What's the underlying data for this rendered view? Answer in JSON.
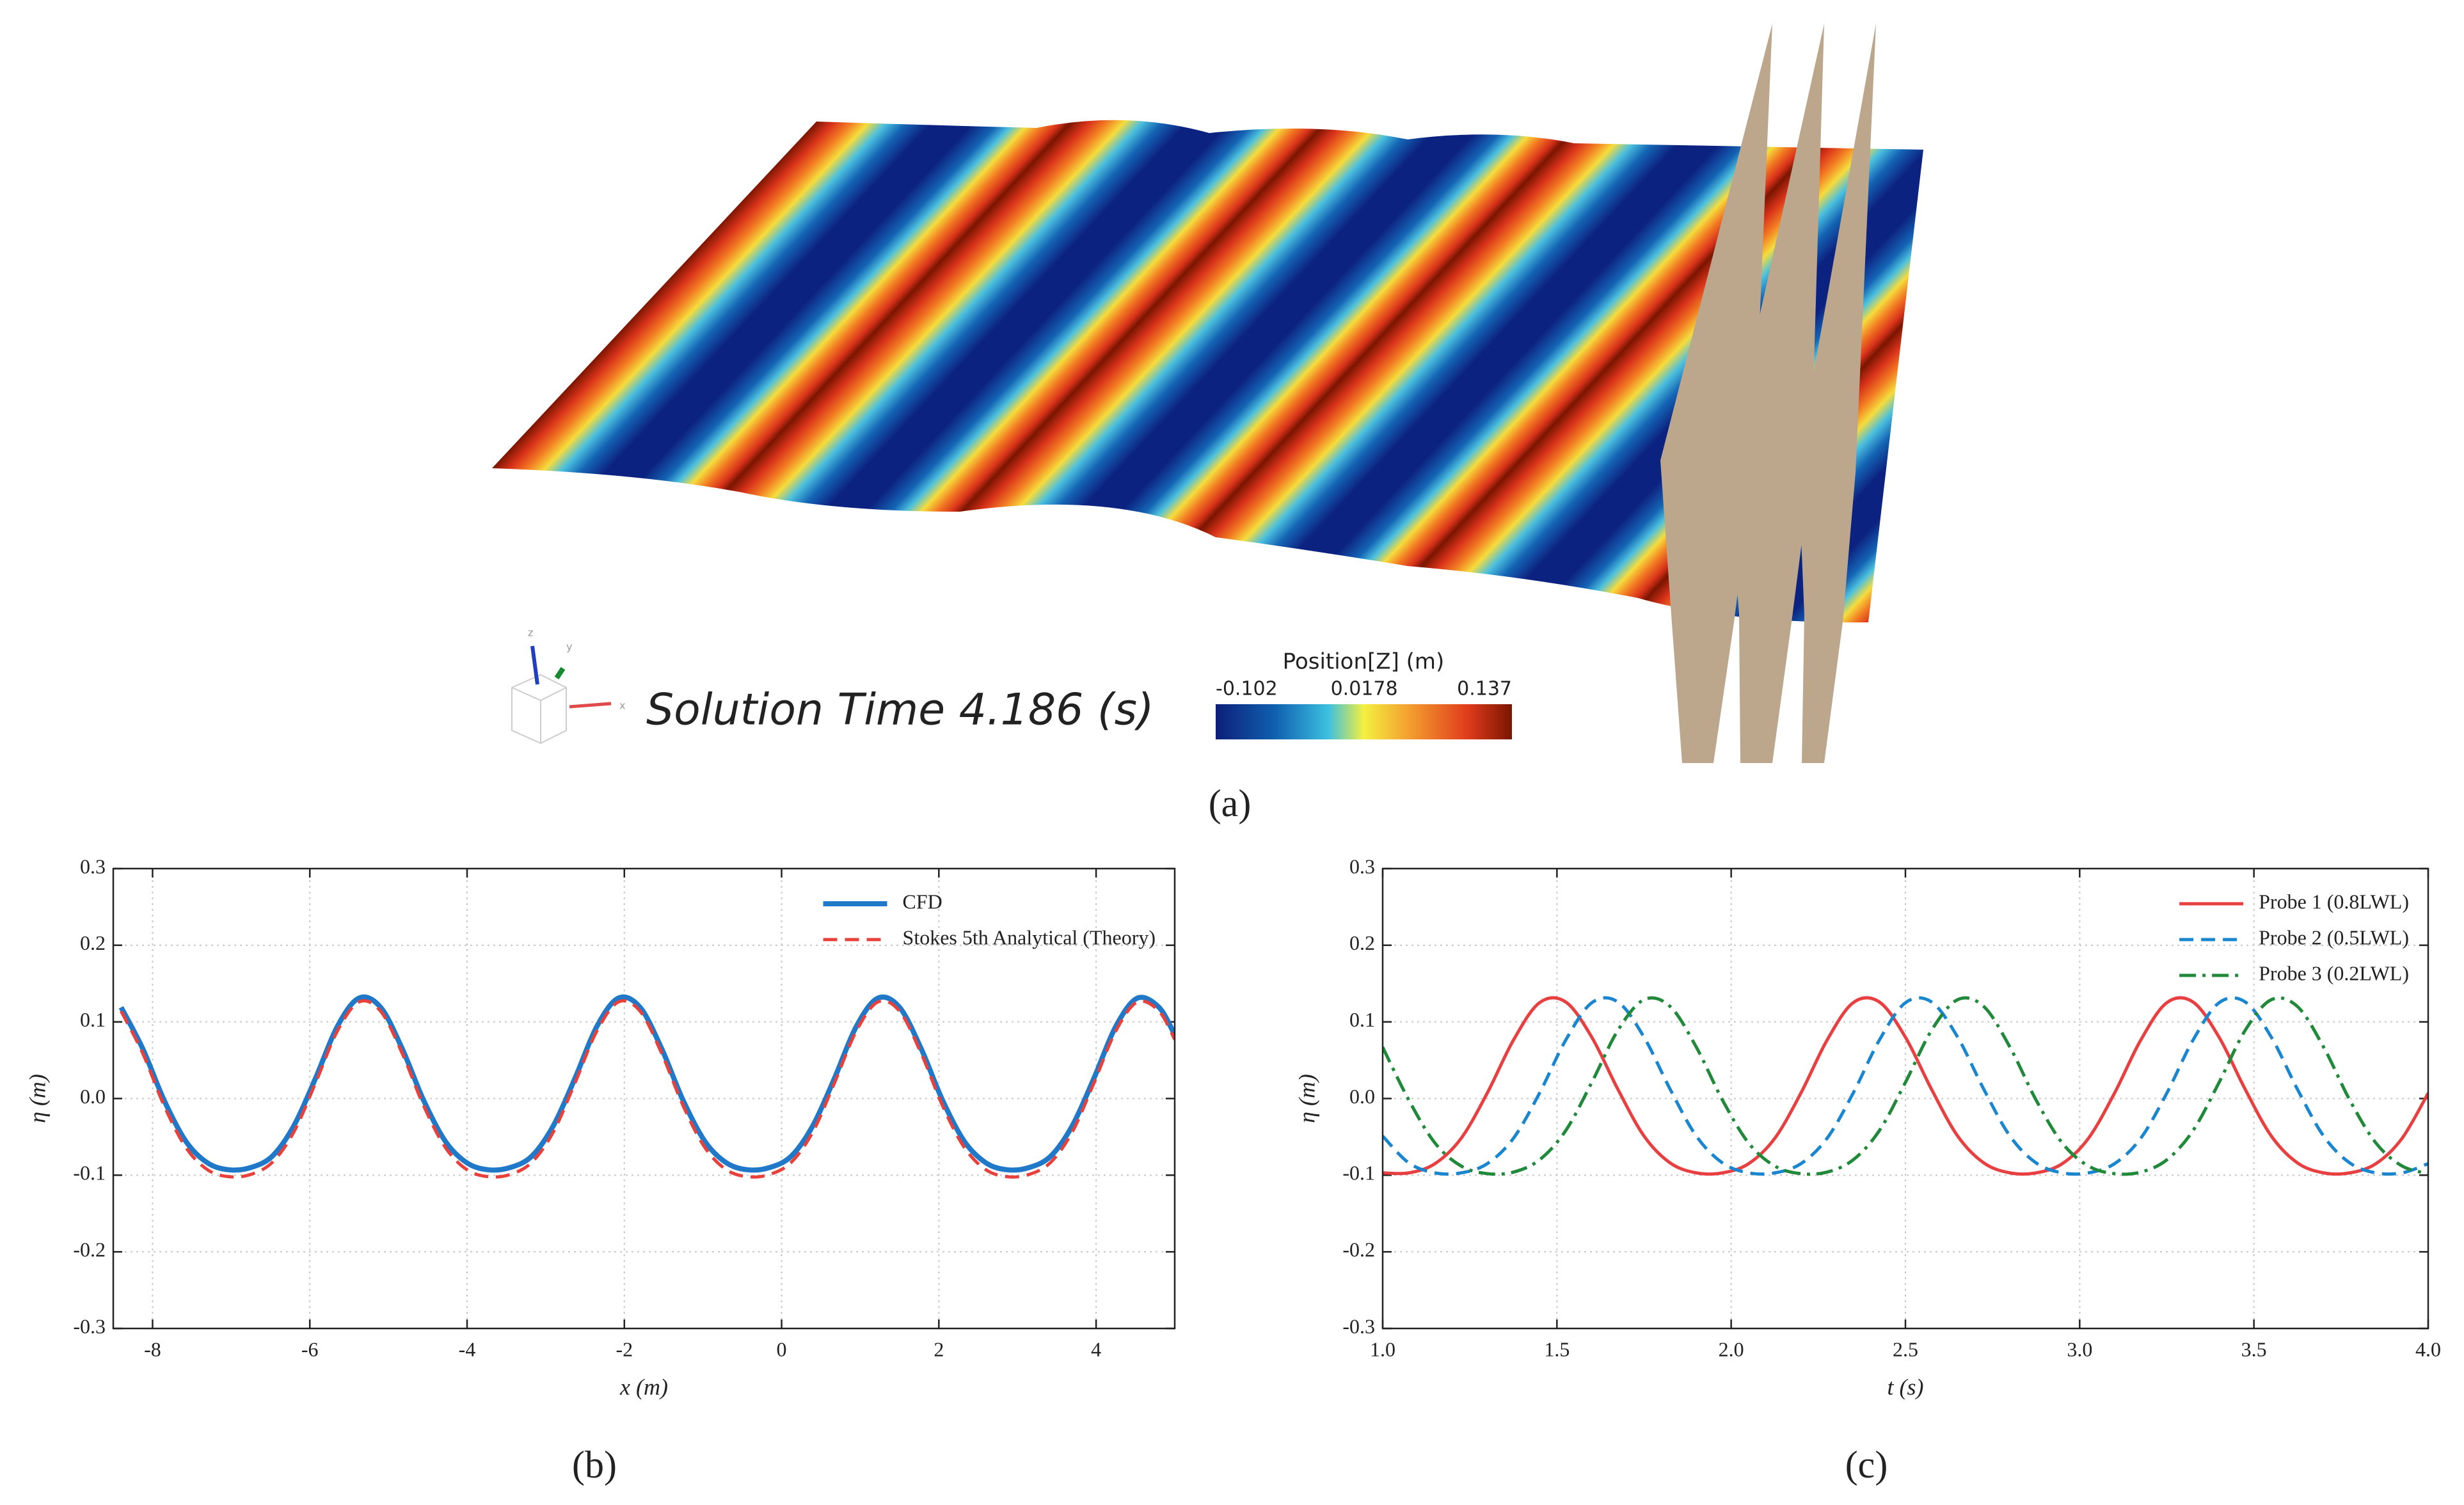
{
  "panel_a": {
    "triad_labels": [
      "z",
      "y",
      "x"
    ],
    "solution_time": "Solution Time 4.186 (s)",
    "colorbar": {
      "title": "Position[Z] (m)",
      "ticks": [
        -0.102,
        0.0178,
        0.137
      ]
    }
  },
  "panel_labels": [
    "(a)",
    "(b)",
    "(c)"
  ],
  "chart_data": [
    {
      "type": "line",
      "xlabel": "x (m)",
      "ylabel": "η (m)",
      "grid": true,
      "legend": "upper right",
      "xlim": [
        -8.5,
        5
      ],
      "ylim": [
        -0.3,
        0.3
      ],
      "xticks": [
        -8,
        -6,
        -4,
        -2,
        0,
        2,
        4
      ],
      "yticks": [
        -0.3,
        -0.2,
        -0.1,
        {
          "value": 0,
          "label": "0.0"
        },
        0.1,
        0.2,
        0.3
      ],
      "x": [
        -8.4,
        -8.125,
        -7.85,
        -7.575,
        -7.3,
        -7.025,
        -6.75,
        -6.475,
        -6.2,
        -5.925,
        -5.65,
        -5.375,
        -5.1,
        -4.825,
        -4.55,
        -4.275,
        -4.0,
        -3.725,
        -3.45,
        -3.175,
        -2.9,
        -2.625,
        -2.35,
        -2.075,
        -1.8,
        -1.525,
        -1.25,
        -0.975,
        -0.7,
        -0.425,
        -0.15,
        0.125,
        0.4,
        0.675,
        0.95,
        1.225,
        1.5,
        1.775,
        2.05,
        2.325,
        2.6,
        2.875,
        3.15,
        3.425,
        3.7,
        3.975,
        4.25,
        4.525,
        4.8,
        5.0
      ],
      "series": [
        {
          "name": "CFD",
          "color": "#1f78c8",
          "style": "solid",
          "width": 8,
          "values": [
            0.119,
            0.065,
            -0.003,
            -0.056,
            -0.084,
            -0.093,
            -0.09,
            -0.075,
            -0.035,
            0.027,
            0.094,
            0.131,
            0.119,
            0.065,
            -0.003,
            -0.056,
            -0.084,
            -0.093,
            -0.09,
            -0.075,
            -0.035,
            0.027,
            0.094,
            0.131,
            0.119,
            0.065,
            -0.003,
            -0.056,
            -0.084,
            -0.093,
            -0.09,
            -0.075,
            -0.035,
            0.027,
            0.094,
            0.131,
            0.119,
            0.065,
            -0.003,
            -0.056,
            -0.084,
            -0.093,
            -0.09,
            -0.075,
            -0.035,
            0.027,
            0.094,
            0.131,
            0.119,
            0.083
          ]
        },
        {
          "name": "Stokes 5th Analytical (Theory)",
          "color": "#e8413c",
          "style": "dashed",
          "width": 5,
          "values": [
            0.114,
            0.059,
            -0.01,
            -0.064,
            -0.093,
            -0.102,
            -0.099,
            -0.083,
            -0.043,
            0.021,
            0.088,
            0.126,
            0.114,
            0.059,
            -0.01,
            -0.064,
            -0.093,
            -0.102,
            -0.099,
            -0.083,
            -0.043,
            0.021,
            0.088,
            0.126,
            0.114,
            0.059,
            -0.01,
            -0.064,
            -0.093,
            -0.102,
            -0.099,
            -0.083,
            -0.043,
            0.021,
            0.088,
            0.126,
            0.114,
            0.059,
            -0.01,
            -0.064,
            -0.093,
            -0.102,
            -0.099,
            -0.083,
            -0.043,
            0.021,
            0.088,
            0.126,
            0.114,
            0.077
          ]
        }
      ]
    },
    {
      "type": "line",
      "xlabel": "t (s)",
      "ylabel": "η (m)",
      "grid": true,
      "legend": "upper right",
      "xlim": [
        1.0,
        4.0
      ],
      "ylim": [
        -0.3,
        0.3
      ],
      "xticks": [
        {
          "value": 1,
          "label": "1.0"
        },
        1.5,
        {
          "value": 2,
          "label": "2.0"
        },
        2.5,
        {
          "value": 3,
          "label": "3.0"
        },
        3.5,
        {
          "value": 4,
          "label": "4.0"
        }
      ],
      "yticks": [
        -0.3,
        -0.2,
        -0.1,
        {
          "value": 0,
          "label": "0.0"
        },
        0.1,
        0.2,
        0.3
      ],
      "x": [
        1,
        1.075,
        1.15,
        1.225,
        1.3,
        1.375,
        1.45,
        1.525,
        1.6,
        1.675,
        1.75,
        1.825,
        1.9,
        1.975,
        2.05,
        2.125,
        2.2,
        2.275,
        2.35,
        2.425,
        2.5,
        2.575,
        2.65,
        2.725,
        2.8,
        2.875,
        2.95,
        3.025,
        3.1,
        3.175,
        3.25,
        3.325,
        3.4,
        3.475,
        3.55,
        3.625,
        3.7,
        3.775,
        3.85,
        3.925,
        4
      ],
      "series": [
        {
          "name": "Probe 1 (0.8LWL)",
          "color": "#e84040",
          "style": "solid",
          "width": 5,
          "values": [
            -0.097,
            -0.097,
            -0.085,
            -0.052,
            0.007,
            0.076,
            0.125,
            0.126,
            0.08,
            0.012,
            -0.049,
            -0.084,
            -0.097,
            -0.097,
            -0.085,
            -0.052,
            0.007,
            0.076,
            0.125,
            0.126,
            0.08,
            0.012,
            -0.049,
            -0.084,
            -0.097,
            -0.097,
            -0.085,
            -0.052,
            0.007,
            0.076,
            0.125,
            0.126,
            0.08,
            0.012,
            -0.049,
            -0.084,
            -0.097,
            -0.097,
            -0.085,
            -0.052,
            0.007
          ]
        },
        {
          "name": "Probe 2 (0.5LWL)",
          "color": "#1a86d0",
          "style": "dashed",
          "width": 5,
          "values": [
            -0.049,
            -0.084,
            -0.097,
            -0.097,
            -0.085,
            -0.052,
            0.007,
            0.076,
            0.125,
            0.126,
            0.08,
            0.012,
            -0.049,
            -0.084,
            -0.097,
            -0.097,
            -0.085,
            -0.052,
            0.007,
            0.076,
            0.125,
            0.126,
            0.08,
            0.012,
            -0.049,
            -0.084,
            -0.097,
            -0.097,
            -0.085,
            -0.052,
            0.007,
            0.076,
            0.125,
            0.126,
            0.08,
            0.012,
            -0.049,
            -0.084,
            -0.097,
            -0.097,
            -0.085
          ]
        },
        {
          "name": "Probe 3 (0.2LWL)",
          "color": "#208a3a",
          "style": "dashdot",
          "width": 5,
          "values": [
            0.067,
            -0.002,
            -0.058,
            -0.088,
            -0.098,
            -0.096,
            -0.08,
            -0.042,
            0.021,
            0.089,
            0.129,
            0.12,
            0.067,
            -0.002,
            -0.058,
            -0.088,
            -0.098,
            -0.096,
            -0.08,
            -0.042,
            0.021,
            0.089,
            0.129,
            0.12,
            0.067,
            -0.002,
            -0.058,
            -0.088,
            -0.098,
            -0.096,
            -0.08,
            -0.042,
            0.021,
            0.089,
            0.129,
            0.12,
            0.067,
            -0.002,
            -0.058,
            -0.088,
            -0.098
          ]
        }
      ]
    }
  ]
}
